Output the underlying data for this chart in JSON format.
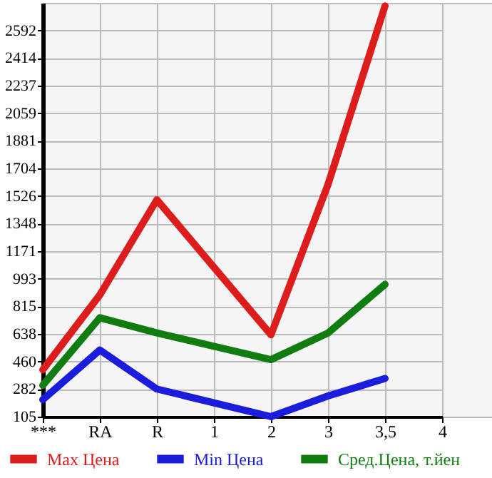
{
  "chart_data": {
    "type": "line",
    "categories": [
      "***",
      "RA",
      "R",
      "1",
      "2",
      "3",
      "3,5",
      "4"
    ],
    "series": [
      {
        "name": "Max Цена",
        "color": "#dd1c1c",
        "values": [
          407,
          889,
          1502,
          null,
          632,
          1600,
          2750,
          null
        ]
      },
      {
        "name": "Min Цена",
        "color": "#1c1cdd",
        "values": [
          214,
          534,
          283,
          null,
          105,
          238,
          351,
          null
        ]
      },
      {
        "name": "Сред.Цена, т.йен",
        "color": "#117d11",
        "values": [
          307,
          742,
          644,
          null,
          472,
          644,
          957,
          null
        ]
      }
    ],
    "ylim": [
      105,
      2770
    ],
    "yticks": [
      105,
      282,
      460,
      638,
      815,
      993,
      1171,
      1348,
      1526,
      1704,
      1881,
      2059,
      2237,
      2414,
      2592
    ],
    "grid": true,
    "legend": "bottom",
    "marker": "none",
    "line_style": "solid"
  }
}
